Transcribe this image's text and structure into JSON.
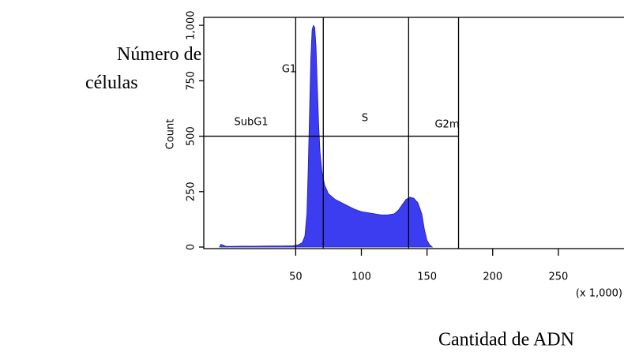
{
  "chart_data": {
    "type": "area",
    "y_label_outer": "Número de células",
    "x_label_outer": "Cantidad de ADN",
    "ylabel": "Count",
    "x_multiplier": "(x 1,000)",
    "x": [
      -8,
      -7,
      -5,
      -3,
      0,
      10,
      20,
      30,
      40,
      48,
      52,
      55,
      57,
      58.5,
      59.5,
      60.5,
      61.5,
      62.5,
      63.5,
      64.5,
      65.5,
      66.5,
      67.5,
      68.5,
      70,
      72,
      75,
      80,
      85,
      90,
      95,
      100,
      105,
      110,
      115,
      120,
      125,
      128,
      131,
      134,
      137,
      140,
      143,
      146,
      148,
      150,
      152,
      154
    ],
    "values": [
      0,
      12,
      8,
      3,
      3,
      4,
      4,
      5,
      5,
      6,
      10,
      20,
      50,
      150,
      350,
      600,
      850,
      980,
      1000,
      990,
      900,
      720,
      550,
      430,
      340,
      280,
      240,
      215,
      200,
      185,
      170,
      160,
      155,
      150,
      145,
      145,
      150,
      165,
      190,
      215,
      225,
      220,
      200,
      150,
      80,
      30,
      10,
      0
    ],
    "color": "#3c3cf0",
    "xlim": [
      -20,
      300
    ],
    "ylim": [
      -7,
      1036
    ],
    "xticks": [
      50,
      100,
      150,
      200,
      250
    ],
    "yticks": [
      0,
      250,
      500,
      750,
      {
        "value": 1000,
        "label": "1,000"
      }
    ],
    "gates": [
      {
        "name": "SubG1",
        "x": 50
      },
      {
        "name": "G1",
        "x": 71
      },
      {
        "name": "S",
        "x": 136
      },
      {
        "name": "G2m",
        "x": 174
      }
    ],
    "threshold": 500
  }
}
